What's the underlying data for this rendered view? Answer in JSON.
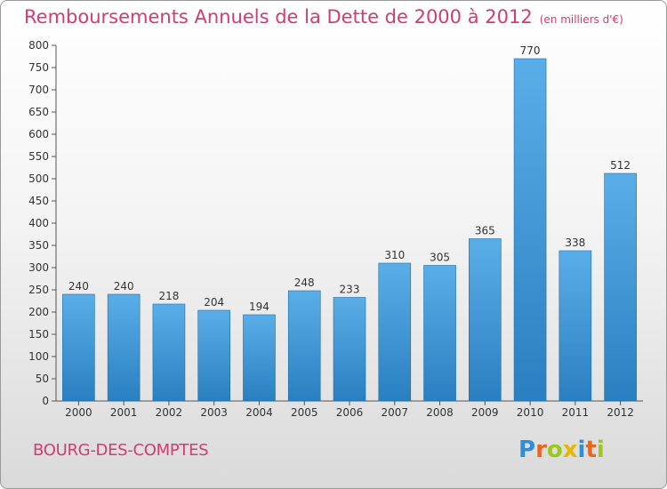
{
  "title": "Remboursements Annuels de la Dette de 2000 à 2012",
  "unit": "(en milliers d'€)",
  "commune": "BOURG-DES-COMPTES",
  "logo": {
    "text": "Proxiti",
    "letter_colors": [
      "#2f8fd6",
      "#e8661e",
      "#9cc71b",
      "#e8b800",
      "#2f8fd6",
      "#e8661e",
      "#9cc71b"
    ]
  },
  "colors": {
    "bar_top": "#5aaee8",
    "bar_bottom": "#2a7fc0",
    "accent": "#d13c72"
  },
  "chart_data": {
    "type": "bar",
    "categories": [
      "2000",
      "2001",
      "2002",
      "2003",
      "2004",
      "2005",
      "2006",
      "2007",
      "2008",
      "2009",
      "2010",
      "2011",
      "2012"
    ],
    "values": [
      240,
      240,
      218,
      204,
      194,
      248,
      233,
      310,
      305,
      365,
      770,
      338,
      512
    ],
    "ylim": [
      0,
      800
    ],
    "yticks": [
      0,
      50,
      100,
      150,
      200,
      250,
      300,
      350,
      400,
      450,
      500,
      550,
      600,
      650,
      700,
      750,
      800
    ],
    "grid": false,
    "xlabel": "",
    "ylabel": ""
  }
}
